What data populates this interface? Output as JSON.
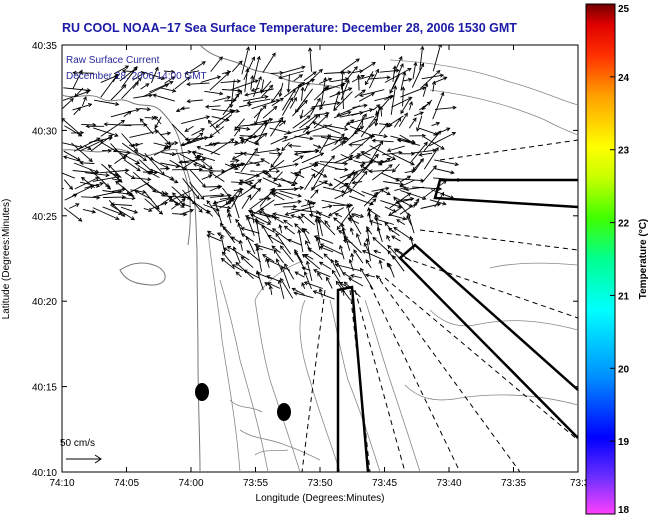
{
  "chart_data": {
    "type": "map",
    "title": "RU COOL  NOAA−17  Sea Surface Temperature:  December 28, 2006 1530 GMT",
    "annotations": [
      "Raw Surface Current",
      "December 28, 2006 14:00 GMT"
    ],
    "scale_label": "50 cm/s",
    "xlabel": "Longitude (Degrees:Minutes)",
    "ylabel": "Latitude (Degrees:Minutes)",
    "x_ticks": [
      "74:10",
      "74:05",
      "74:00",
      "73:55",
      "73:50",
      "73:45",
      "73:40",
      "73:35",
      "73:3"
    ],
    "y_ticks": [
      "40:35",
      "40:30",
      "40:25",
      "40:20",
      "40:15",
      "40:10"
    ],
    "colorbar": {
      "label": "Temperature (°C)",
      "ticks": [
        "25",
        "24",
        "23",
        "22",
        "21",
        "20",
        "19",
        "18"
      ],
      "range": [
        18,
        25
      ],
      "colors": [
        "#ff40ff",
        "#7030ff",
        "#0000ff",
        "#0090ff",
        "#00ffff",
        "#00ff90",
        "#40ff00",
        "#c8ff00",
        "#ffff00",
        "#ffa000",
        "#ff3000",
        "#e00000",
        "#700000"
      ]
    },
    "grid": false
  }
}
